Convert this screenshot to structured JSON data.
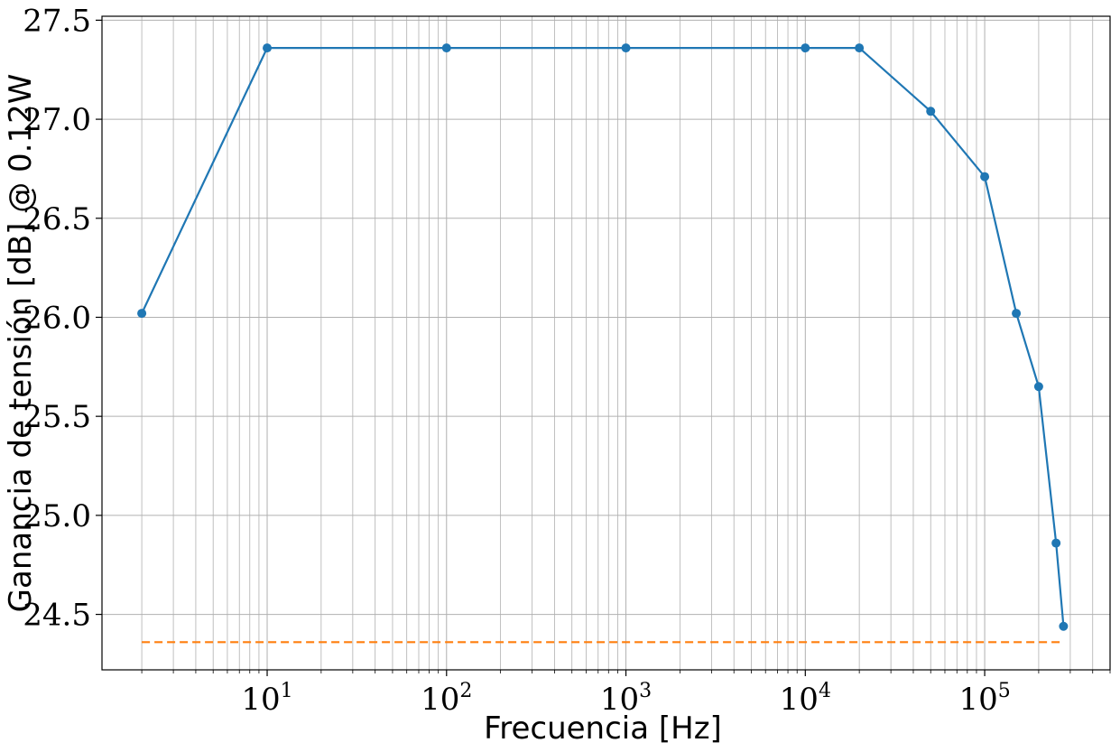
{
  "chart_data": {
    "type": "line",
    "title": "",
    "xlabel": "Frecuencia [Hz]",
    "ylabel": "Ganancia de tensión [dB] @ 0.12W",
    "xscale": "log",
    "xlim": [
      1.2,
      500000
    ],
    "ylim": [
      24.22,
      27.52
    ],
    "grid": true,
    "legend": "none",
    "x_ticks": [
      {
        "base": "10",
        "exp": "1",
        "value": 10
      },
      {
        "base": "10",
        "exp": "2",
        "value": 100
      },
      {
        "base": "10",
        "exp": "3",
        "value": 1000
      },
      {
        "base": "10",
        "exp": "4",
        "value": 10000
      },
      {
        "base": "10",
        "exp": "5",
        "value": 100000
      }
    ],
    "y_ticks": [
      "24.5",
      "25.0",
      "25.5",
      "26.0",
      "26.5",
      "27.0",
      "27.5"
    ],
    "series": [
      {
        "color": "#1f77b4",
        "style": "solid-with-markers",
        "x": [
          2,
          10,
          100,
          1000,
          10000,
          20000,
          50000,
          100000,
          150000,
          200000,
          250000,
          275000
        ],
        "y": [
          26.02,
          27.36,
          27.36,
          27.36,
          27.36,
          27.36,
          27.04,
          26.71,
          26.02,
          25.65,
          24.86,
          24.44
        ]
      },
      {
        "color": "#ff7f0e",
        "style": "dashed",
        "x": [
          2,
          275000
        ],
        "y": [
          24.36,
          24.36
        ]
      }
    ]
  }
}
